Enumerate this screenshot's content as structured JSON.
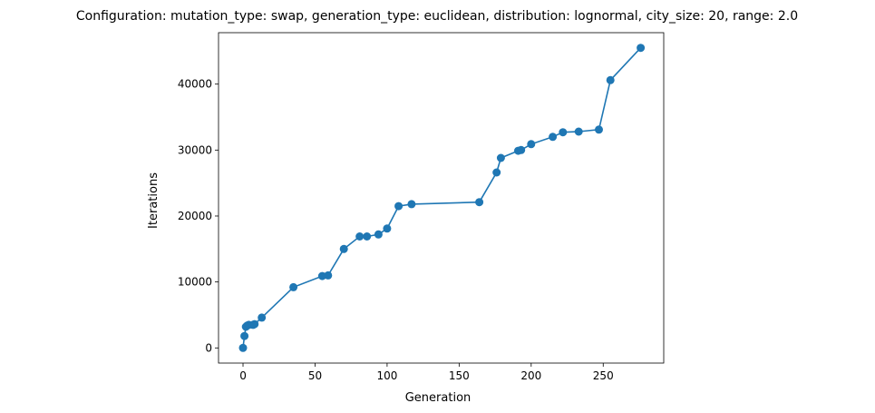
{
  "chart_data": {
    "type": "line",
    "title": "Configuration: mutation_type: swap, generation_type: euclidean, distribution: lognormal, city_size: 20, range: 2.0",
    "xlabel": "Generation",
    "ylabel": "Iterations",
    "xlim": [
      -17,
      292
    ],
    "ylim": [
      -2300,
      47800
    ],
    "xticks": [
      0,
      50,
      100,
      150,
      200,
      250
    ],
    "yticks": [
      0,
      10000,
      20000,
      30000,
      40000
    ],
    "grid": false,
    "legend": "none",
    "line_color": "#1f77b4",
    "marker": "circle",
    "series": [
      {
        "x": [
          0,
          1,
          2,
          3,
          4,
          7,
          8,
          13,
          35,
          55,
          59,
          70,
          81,
          86,
          94,
          100,
          108,
          117,
          164,
          176,
          179,
          191,
          193,
          200,
          215,
          222,
          233,
          247,
          255,
          276
        ],
        "values": [
          0,
          1800,
          3200,
          3400,
          3500,
          3500,
          3600,
          4600,
          9200,
          10900,
          11000,
          15000,
          16900,
          16900,
          17200,
          18100,
          21500,
          21800,
          22100,
          26600,
          28800,
          29900,
          30000,
          30900,
          32000,
          32700,
          32800,
          33100,
          40600,
          45500
        ]
      }
    ]
  }
}
